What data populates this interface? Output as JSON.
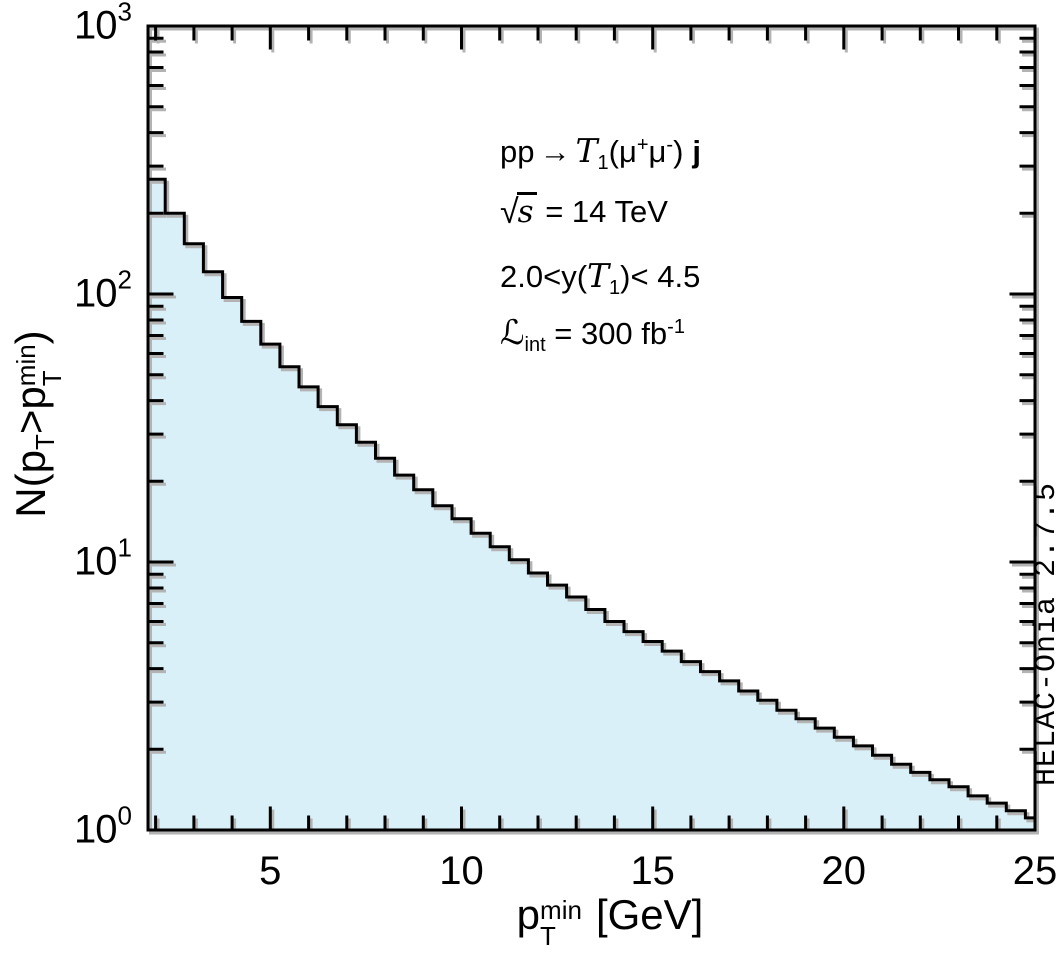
{
  "watermark": "HELAC-Onia 2.7.5",
  "colors": {
    "fill": "#d9f0f8",
    "line": "#000000",
    "shadow": "#b3b3b3",
    "background": "#ffffff"
  },
  "axes": {
    "x": {
      "p": "p",
      "sup": "min",
      "sub": "T",
      "unit": "[GeV]",
      "major_tick_labels": [
        "5",
        "10",
        "15",
        "20",
        "25"
      ]
    },
    "y": {
      "seg1": "N(p",
      "seg1_sub": "T",
      "seg2": ">p",
      "seg2_sup": "min",
      "seg2_sub": "T",
      "seg3": ")",
      "tick_labels": [
        {
          "base": "10",
          "exp": "0"
        },
        {
          "base": "10",
          "exp": "1"
        },
        {
          "base": "10",
          "exp": "2"
        },
        {
          "base": "10",
          "exp": "3"
        }
      ]
    }
  },
  "annotation": {
    "process": {
      "pp": "pp",
      "arrow": "→",
      "state": "T",
      "state_sub": "1",
      "open": "(",
      "mu1": "μ",
      "mu1_sup": "+",
      "mu2": "μ",
      "mu2_sup": "-",
      "close": ")",
      "jet": "j"
    },
    "energy": {
      "sqrt": "√",
      "s": "s",
      "rest": " = 14 TeV"
    },
    "rapidity": {
      "pre": "2.0<y(",
      "state": "T",
      "state_sub": "1",
      "post": ")< 4.5"
    },
    "luminosity": {
      "script_l": "ℒ",
      "sub": "int",
      "rest": " = 300 fb",
      "sup": "-1"
    }
  },
  "chart_data": {
    "type": "area",
    "subtype": "cumulative-step-histogram",
    "title": "",
    "xlabel": "pT^min [GeV]",
    "ylabel": "N(pT > pT^min)",
    "x_scale": "linear",
    "y_scale": "log",
    "xlim": [
      1.8,
      25
    ],
    "ylim": [
      1,
      1000
    ],
    "grid": false,
    "legend": "none",
    "bin_start": 1.75,
    "bin_width": 0.5,
    "values": [
      268,
      200,
      154,
      121,
      97,
      79,
      65,
      53.5,
      45,
      38,
      32.5,
      28,
      24.4,
      21.1,
      18.6,
      16.2,
      14.5,
      12.8,
      11.4,
      10.2,
      9.1,
      8.2,
      7.4,
      6.65,
      6.0,
      5.5,
      5.05,
      4.65,
      4.25,
      3.9,
      3.6,
      3.3,
      3.05,
      2.8,
      2.6,
      2.4,
      2.22,
      2.06,
      1.9,
      1.76,
      1.64,
      1.54,
      1.45,
      1.34,
      1.26,
      1.18,
      1.11
    ],
    "x_major_ticks": [
      5,
      10,
      15,
      20,
      25
    ],
    "x_minor_tick_step": 1,
    "y_major_ticks": [
      1,
      10,
      100,
      1000
    ],
    "annotations": [
      "pp → T1(μ+μ-) j",
      "√s = 14 TeV",
      "2.0 < y(T1) < 4.5",
      "Lint = 300 fb-1"
    ],
    "watermark": "HELAC-Onia 2.7.5"
  }
}
